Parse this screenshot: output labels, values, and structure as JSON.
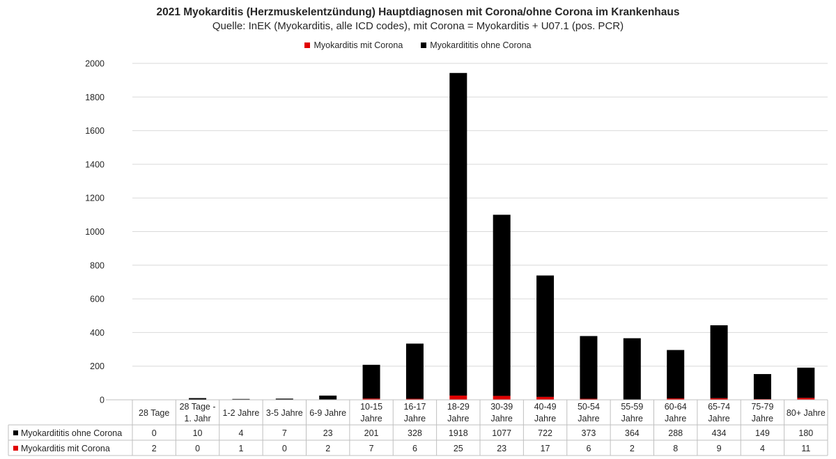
{
  "colors": {
    "mit_corona": "#e00000",
    "ohne_corona": "#000000",
    "grid": "#d9d9d9",
    "axis": "#bfbfbf",
    "text": "#262626"
  },
  "chart_data": {
    "type": "bar",
    "stacked": true,
    "title": "2021 Myokarditis (Herzmuskelentzündung) Hauptdiagnosen mit Corona/ohne Corona im Krankenhaus",
    "subtitle": "Quelle: InEK (Myokarditis, alle ICD codes), mit Corona = Myokarditis + U07.1 (pos. PCR)",
    "legend_position": "top",
    "grid": true,
    "ylim": [
      0,
      2000
    ],
    "yticks": [
      "0",
      "200",
      "400",
      "600",
      "800",
      "1000",
      "1200",
      "1400",
      "1600",
      "1800",
      "2000"
    ],
    "categories": [
      [
        "28 Tage"
      ],
      [
        "28 Tage -",
        "1. Jahr"
      ],
      [
        "1-2 Jahre"
      ],
      [
        "3-5 Jahre"
      ],
      [
        "6-9 Jahre"
      ],
      [
        "10-15",
        "Jahre"
      ],
      [
        "16-17",
        "Jahre"
      ],
      [
        "18-29",
        "Jahre"
      ],
      [
        "30-39",
        "Jahre"
      ],
      [
        "40-49",
        "Jahre"
      ],
      [
        "50-54",
        "Jahre"
      ],
      [
        "55-59",
        "Jahre"
      ],
      [
        "60-64",
        "Jahre"
      ],
      [
        "65-74",
        "Jahre"
      ],
      [
        "75-79",
        "Jahre"
      ],
      [
        "80+ Jahre"
      ]
    ],
    "series": [
      {
        "name": "Myokarditis mit Corona",
        "color": "#e00000",
        "values": [
          2,
          0,
          1,
          0,
          2,
          7,
          6,
          25,
          23,
          17,
          6,
          2,
          8,
          9,
          4,
          11
        ]
      },
      {
        "name": "Myokardititis ohne Corona",
        "color": "#000000",
        "values": [
          0,
          10,
          4,
          7,
          23,
          201,
          328,
          1918,
          1077,
          722,
          373,
          364,
          288,
          434,
          149,
          180
        ]
      }
    ],
    "table_rows": [
      {
        "name": "Myokardititis ohne Corona",
        "color": "#000000",
        "values": [
          "0",
          "10",
          "4",
          "7",
          "23",
          "201",
          "328",
          "1918",
          "1077",
          "722",
          "373",
          "364",
          "288",
          "434",
          "149",
          "180"
        ]
      },
      {
        "name": "Myokarditis mit Corona",
        "color": "#e00000",
        "values": [
          "2",
          "0",
          "1",
          "0",
          "2",
          "7",
          "6",
          "25",
          "23",
          "17",
          "6",
          "2",
          "8",
          "9",
          "4",
          "11"
        ]
      }
    ]
  }
}
